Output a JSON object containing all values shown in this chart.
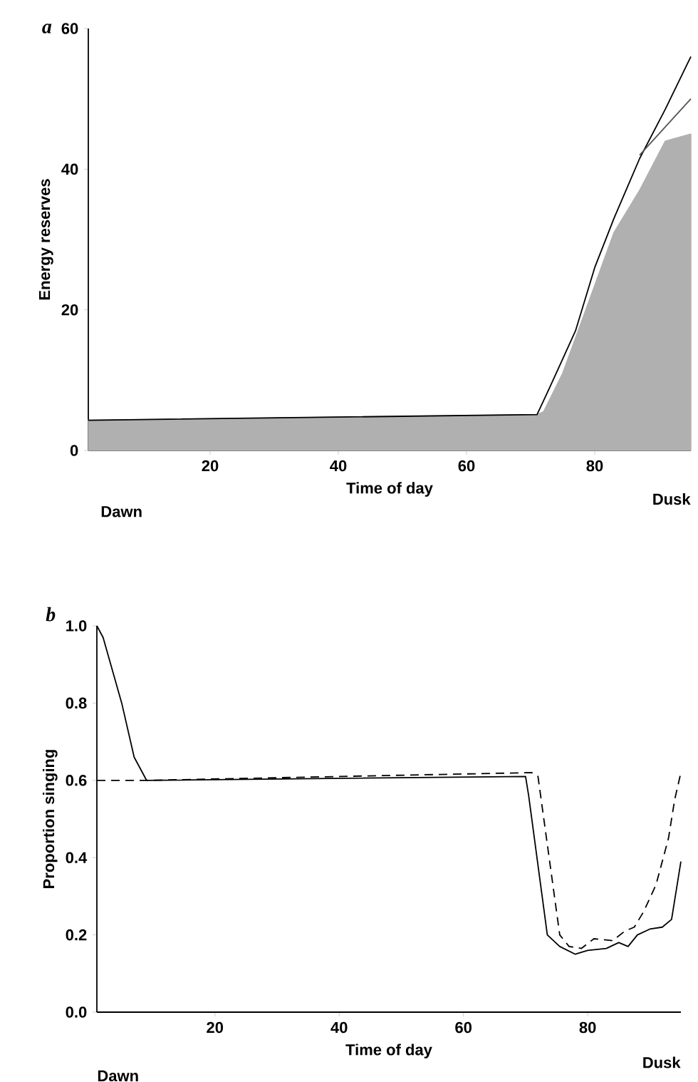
{
  "chart_data": [
    {
      "type": "line",
      "xlabel": "Time of day",
      "ylabel": "Energy reserves",
      "xlim": [
        1,
        95
      ],
      "ylim": [
        0,
        60
      ],
      "xticks": [
        20,
        40,
        60,
        80
      ],
      "yticks": [
        0,
        20,
        40,
        60
      ],
      "annotations": [
        "a",
        "Dawn",
        "Dusk"
      ],
      "series": [
        {
          "type": "area",
          "color": "#b0b0b0",
          "x": [
            1,
            71,
            72,
            75,
            79,
            83,
            87,
            91,
            95
          ],
          "values": [
            4.3,
            5.1,
            5.5,
            11,
            21,
            31,
            37,
            44,
            45
          ]
        },
        {
          "type": "line",
          "color": "#000000",
          "x": [
            1,
            71,
            73,
            77,
            80,
            83,
            87,
            91,
            95
          ],
          "values": [
            4.3,
            5.1,
            9,
            17,
            26,
            33,
            41.5,
            48.5,
            56
          ]
        },
        {
          "type": "line",
          "color": "#555555",
          "x": [
            87,
            95
          ],
          "values": [
            42,
            50
          ]
        }
      ]
    },
    {
      "type": "line",
      "xlabel": "Time of day",
      "ylabel": "Proportion singing",
      "xlim": [
        1,
        95
      ],
      "ylim": [
        0,
        1
      ],
      "xticks": [
        20,
        40,
        60,
        80
      ],
      "yticks": [
        {
          "value": 0,
          "label": "0.0"
        },
        {
          "value": 0.2,
          "label": "0.2"
        },
        {
          "value": 0.4,
          "label": "0.4"
        },
        {
          "value": 0.6,
          "label": "0.6"
        },
        {
          "value": 0.8,
          "label": "0.8"
        },
        {
          "value": 1,
          "label": "1.0"
        }
      ],
      "annotations": [
        "b",
        "Dawn",
        "Dusk"
      ],
      "series": [
        {
          "color": "#000000",
          "line_style": "solid",
          "x": [
            1,
            2,
            5,
            7,
            9,
            70,
            70.5,
            73.5,
            75.5,
            78,
            80,
            83,
            85,
            86.5,
            88,
            90,
            92,
            93.5,
            95
          ],
          "values": [
            1.0,
            0.97,
            0.8,
            0.66,
            0.6,
            0.61,
            0.56,
            0.2,
            0.17,
            0.15,
            0.16,
            0.165,
            0.18,
            0.17,
            0.2,
            0.215,
            0.22,
            0.24,
            0.39
          ]
        },
        {
          "color": "#000000",
          "line_style": "dashed",
          "x": [
            1,
            9,
            71,
            72,
            75.5,
            77,
            79,
            81,
            84,
            86,
            87.5,
            89,
            91,
            93,
            94,
            95
          ],
          "values": [
            0.6,
            0.6,
            0.62,
            0.61,
            0.2,
            0.17,
            0.165,
            0.19,
            0.185,
            0.21,
            0.22,
            0.26,
            0.33,
            0.45,
            0.55,
            0.62
          ]
        }
      ]
    }
  ]
}
